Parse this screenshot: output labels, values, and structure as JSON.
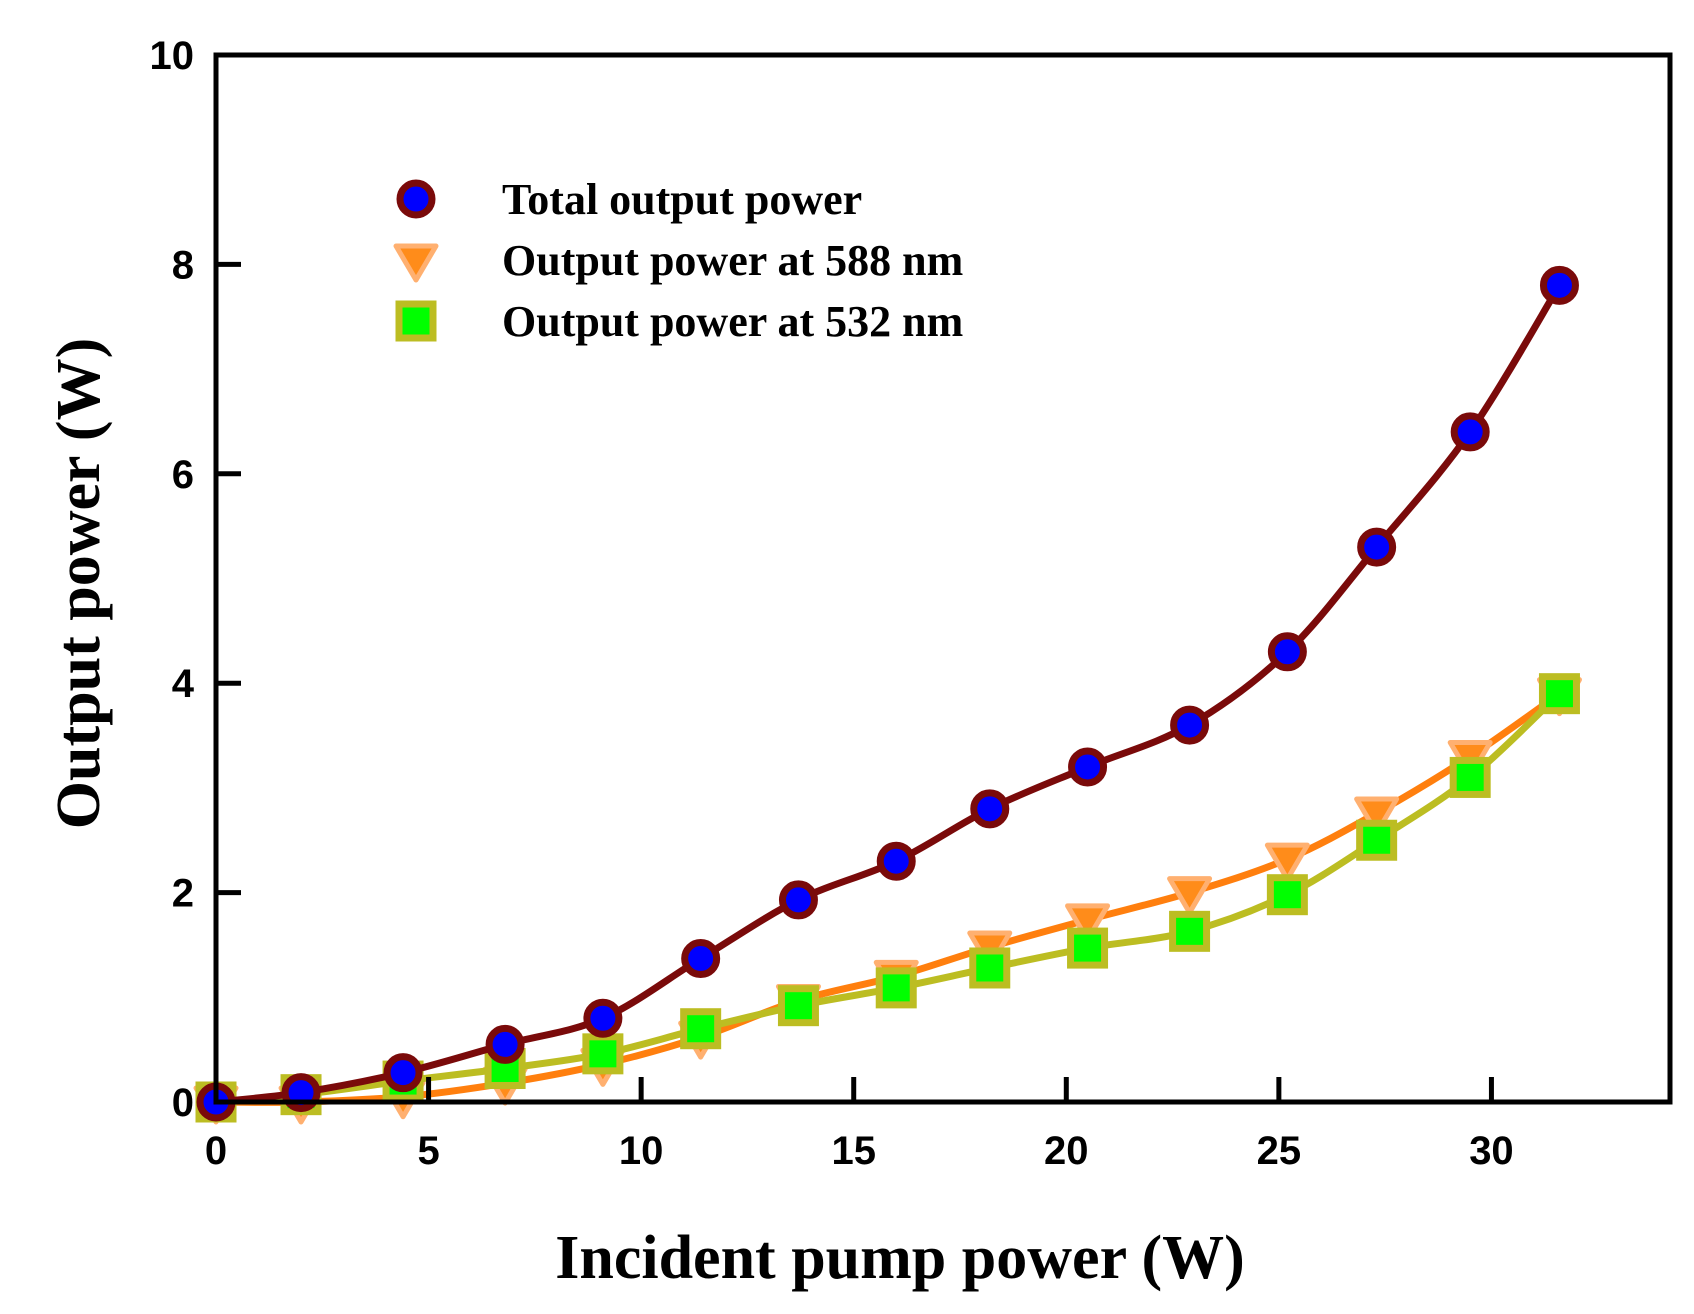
{
  "chart_data": {
    "type": "scatter",
    "xlabel": "Incident pump power (W)",
    "ylabel": "Output power (W)",
    "xlim": [
      0,
      34.2
    ],
    "ylim": [
      0,
      10
    ],
    "xticks": [
      0,
      5,
      10,
      15,
      20,
      25,
      30
    ],
    "yticks": [
      0,
      2,
      4,
      6,
      8,
      10
    ],
    "grid": false,
    "legend_position": "top-left",
    "series": [
      {
        "name": "Total output power",
        "marker": "circle",
        "line_color": "#7a0a0a",
        "marker_fill": "#0000ff",
        "marker_edge": "#7a0a0a",
        "x": [
          0,
          2.0,
          4.4,
          6.8,
          9.1,
          11.4,
          13.7,
          16.0,
          18.2,
          20.5,
          22.9,
          25.2,
          27.3,
          29.5,
          31.6
        ],
        "y": [
          0,
          0.09,
          0.28,
          0.55,
          0.8,
          1.37,
          1.93,
          2.3,
          2.8,
          3.2,
          3.6,
          4.3,
          5.3,
          6.4,
          7.8
        ]
      },
      {
        "name": "Output power at 588 nm",
        "marker": "triangle-down",
        "line_color": "#ff7f0e",
        "marker_fill": "#ff8c1a",
        "marker_edge": "#ffb070",
        "x": [
          0,
          2.0,
          4.4,
          6.8,
          9.1,
          11.4,
          13.7,
          16.0,
          18.2,
          20.5,
          22.9,
          25.2,
          27.3,
          29.5,
          31.6
        ],
        "y": [
          0,
          0.0,
          0.05,
          0.18,
          0.36,
          0.62,
          0.97,
          1.2,
          1.48,
          1.74,
          2.0,
          2.32,
          2.76,
          3.3,
          3.9
        ]
      },
      {
        "name": "Output power at 532 nm",
        "marker": "square",
        "line_color": "#bcbd22",
        "marker_fill": "#00ff00",
        "marker_edge": "#bcbd22",
        "x": [
          0,
          2.0,
          4.4,
          6.8,
          9.1,
          11.4,
          13.7,
          16.0,
          18.2,
          20.5,
          22.9,
          25.2,
          27.3,
          29.5,
          31.6
        ],
        "y": [
          0,
          0.07,
          0.2,
          0.32,
          0.46,
          0.7,
          0.92,
          1.09,
          1.28,
          1.47,
          1.63,
          1.98,
          2.5,
          3.1,
          3.9
        ]
      }
    ]
  }
}
